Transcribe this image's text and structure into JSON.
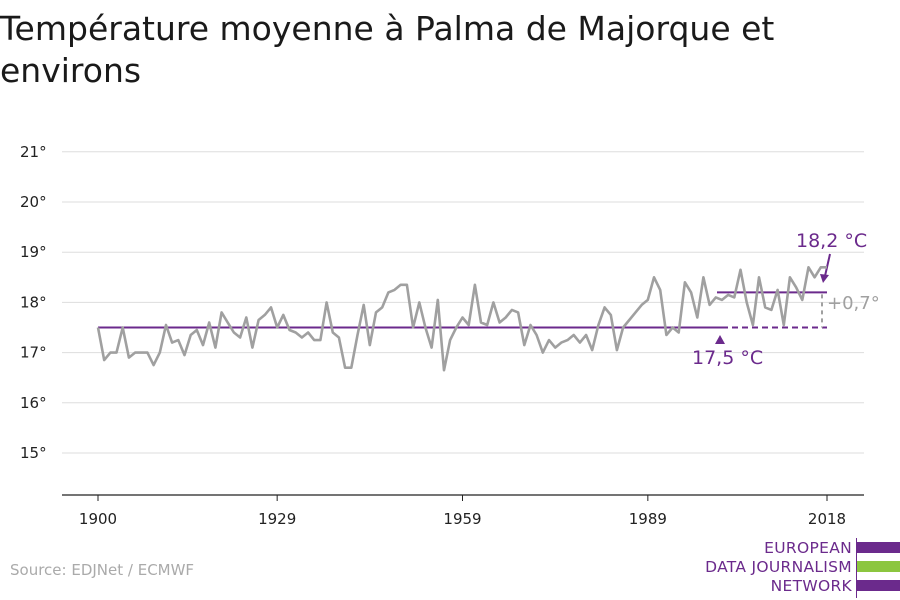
{
  "title": "Température moyenne à Palma de Majorque et environs",
  "source": "Source: EDJNet / ECMWF",
  "logo": {
    "lines": [
      "EUROPEAN",
      "DATA JOURNALISM",
      "NETWORK"
    ],
    "colors": {
      "purple": "#6b2a8c",
      "green": "#8cc63f"
    }
  },
  "colors": {
    "series": "#a0a0a0",
    "accent": "#6b2a8c",
    "grid": "#dddddd",
    "axis": "#222222"
  },
  "chart_data": {
    "type": "line",
    "title": "Température moyenne à Palma de Majorque et environs",
    "xlabel": "",
    "ylabel": "",
    "xlim": [
      1900,
      2018
    ],
    "ylim": [
      14.2,
      21.6
    ],
    "x_ticks": [
      1900,
      1929,
      1959,
      1989,
      2018
    ],
    "x_tick_labels": [
      "1900",
      "1929",
      "1959",
      "1989",
      "2018"
    ],
    "y_ticks": [
      15,
      16,
      17,
      18,
      19,
      20,
      21
    ],
    "y_tick_labels": [
      "15°",
      "16°",
      "17°",
      "18°",
      "19°",
      "20°",
      "21°"
    ],
    "grid": true,
    "series": [
      {
        "x_start": 1900,
        "values": [
          17.5,
          16.85,
          17.0,
          17.0,
          17.5,
          16.9,
          17.0,
          17.0,
          17.0,
          16.75,
          17.0,
          17.55,
          17.2,
          17.25,
          16.95,
          17.35,
          17.45,
          17.15,
          17.6,
          17.1,
          17.8,
          17.6,
          17.4,
          17.3,
          17.7,
          17.1,
          17.65,
          17.75,
          17.9,
          17.5,
          17.75,
          17.45,
          17.4,
          17.3,
          17.4,
          17.25,
          17.25,
          18.0,
          17.4,
          17.3,
          16.7,
          16.7,
          17.35,
          17.95,
          17.15,
          17.8,
          17.9,
          18.2,
          18.25,
          18.35,
          18.35,
          17.5,
          18.0,
          17.5,
          17.1,
          18.05,
          16.65,
          17.25,
          17.5,
          17.7,
          17.55,
          18.35,
          17.6,
          17.55,
          18.0,
          17.6,
          17.7,
          17.85,
          17.8,
          17.15,
          17.55,
          17.35,
          17.0,
          17.25,
          17.1,
          17.2,
          17.25,
          17.35,
          17.2,
          17.35,
          17.05,
          17.55,
          17.9,
          17.75,
          17.05,
          17.5,
          17.65,
          17.8,
          17.95,
          18.05,
          18.5,
          18.25,
          17.35,
          17.5,
          17.4,
          18.4,
          18.2,
          17.7,
          18.5,
          17.95,
          18.1,
          18.05,
          18.15,
          18.1,
          18.65,
          18.0,
          17.55,
          18.5,
          17.9,
          17.85,
          18.25,
          17.55,
          18.5,
          18.3,
          18.05,
          18.7,
          18.5,
          18.7,
          18.7
        ]
      }
    ],
    "annotations": {
      "baseline": {
        "value": 17.5,
        "from": 1900,
        "to": 2018,
        "label": "17,5 °C"
      },
      "recent": {
        "value": 18.2,
        "from": 2000,
        "to": 2018,
        "label": "18,2 °C"
      },
      "difference": {
        "label": "+0,7°"
      }
    }
  }
}
